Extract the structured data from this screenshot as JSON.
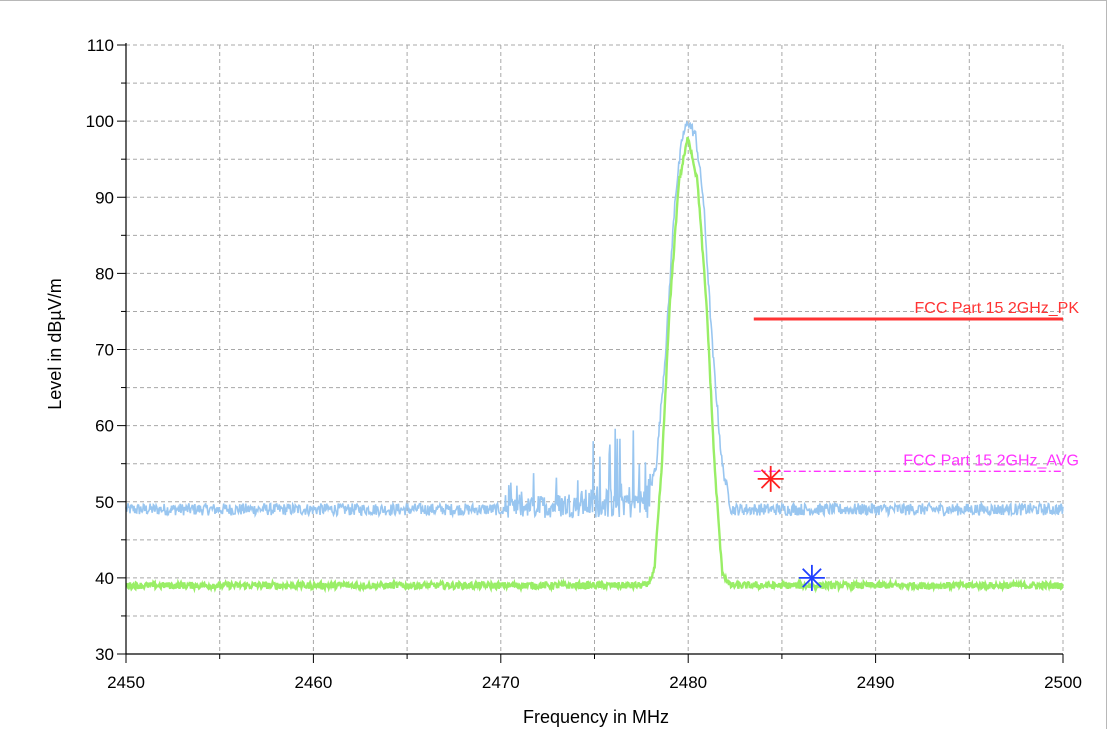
{
  "chart_data": {
    "type": "line",
    "xlabel": "Frequency in MHz",
    "ylabel": "Level in dBµV/m",
    "xlim": [
      2450,
      2500
    ],
    "ylim": [
      30,
      110
    ],
    "x_ticks": [
      2450,
      2460,
      2470,
      2480,
      2490,
      2500
    ],
    "y_ticks": [
      30,
      40,
      50,
      60,
      70,
      80,
      90,
      100,
      110
    ],
    "grid": true,
    "series": [
      {
        "role": "peak_trace",
        "color": "#99c6f0",
        "points": [
          [
            2450,
            49
          ],
          [
            2470,
            49
          ],
          [
            2476,
            50
          ],
          [
            2477.8,
            50
          ],
          [
            2478.3,
            55
          ],
          [
            2478.8,
            70
          ],
          [
            2479.3,
            90
          ],
          [
            2479.7,
            98
          ],
          [
            2480,
            100
          ],
          [
            2480.4,
            98
          ],
          [
            2480.8,
            90
          ],
          [
            2481.3,
            70
          ],
          [
            2481.8,
            55
          ],
          [
            2482.3,
            49
          ],
          [
            2500,
            49
          ]
        ]
      },
      {
        "role": "average_trace",
        "color": "#99ee66",
        "points": [
          [
            2450,
            39
          ],
          [
            2477.8,
            39
          ],
          [
            2478.2,
            41
          ],
          [
            2478.6,
            55
          ],
          [
            2479,
            75
          ],
          [
            2479.5,
            92
          ],
          [
            2480,
            98
          ],
          [
            2480.5,
            92
          ],
          [
            2481,
            75
          ],
          [
            2481.4,
            55
          ],
          [
            2481.8,
            41
          ],
          [
            2482.2,
            39
          ],
          [
            2500,
            39
          ]
        ]
      }
    ],
    "limit_lines": [
      {
        "name": "FCC Part 15 2GHz_PK",
        "x": [
          2483.5,
          2500
        ],
        "y": 74,
        "color": "#ff3333",
        "style": "solid"
      },
      {
        "name": "FCC Part 15 2GHz_AVG",
        "x": [
          2483.5,
          2500
        ],
        "y": 54,
        "color": "#ff33ff",
        "style": "dash-dot"
      }
    ],
    "markers": [
      {
        "role": "peak_marker",
        "x": 2484.4,
        "y": 53,
        "color": "#ff2020"
      },
      {
        "role": "average_marker",
        "x": 2486.6,
        "y": 40,
        "color": "#2040ff"
      }
    ]
  }
}
